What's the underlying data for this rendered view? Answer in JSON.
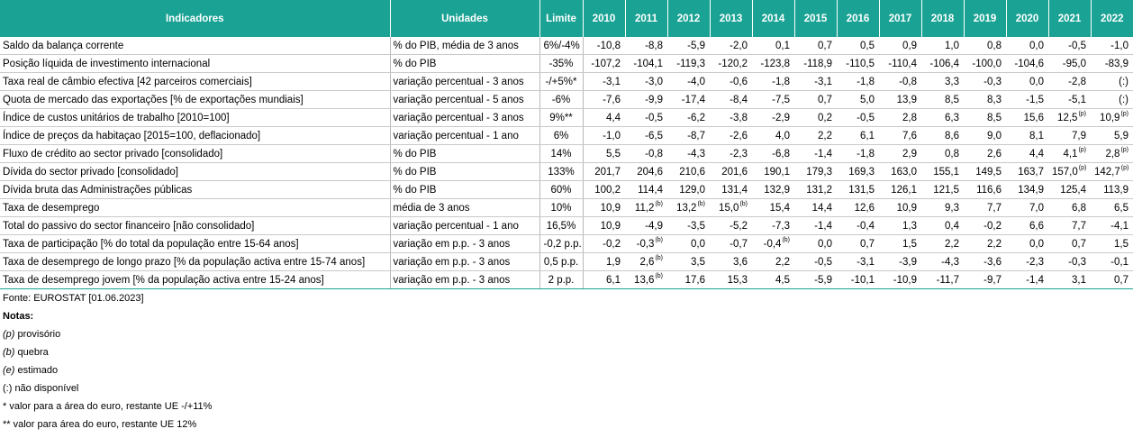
{
  "table": {
    "headers": [
      "Indicadores",
      "Unidades",
      "Limite",
      "2010",
      "2011",
      "2012",
      "2013",
      "2014",
      "2015",
      "2016",
      "2017",
      "2018",
      "2019",
      "2020",
      "2021",
      "2022"
    ],
    "rows": [
      {
        "ind": "Saldo da balança corrente",
        "un": "% do PIB, média de 3 anos",
        "lim": "6%/-4%",
        "v": [
          [
            "-10,8",
            ""
          ],
          [
            "-8,8",
            ""
          ],
          [
            "-5,9",
            ""
          ],
          [
            "-2,0",
            ""
          ],
          [
            "0,1",
            ""
          ],
          [
            "0,7",
            ""
          ],
          [
            "0,5",
            ""
          ],
          [
            "0,9",
            ""
          ],
          [
            "1,0",
            ""
          ],
          [
            "0,8",
            ""
          ],
          [
            "0,0",
            ""
          ],
          [
            "-0,5",
            ""
          ],
          [
            "-1,0",
            ""
          ]
        ]
      },
      {
        "ind": "Posição líquida de investimento internacional",
        "un": "% do PIB",
        "lim": "-35%",
        "v": [
          [
            "-107,2",
            ""
          ],
          [
            "-104,1",
            ""
          ],
          [
            "-119,3",
            ""
          ],
          [
            "-120,2",
            ""
          ],
          [
            "-123,8",
            ""
          ],
          [
            "-118,9",
            ""
          ],
          [
            "-110,5",
            ""
          ],
          [
            "-110,4",
            ""
          ],
          [
            "-106,4",
            ""
          ],
          [
            "-100,0",
            ""
          ],
          [
            "-104,6",
            ""
          ],
          [
            "-95,0",
            ""
          ],
          [
            "-83,9",
            ""
          ]
        ]
      },
      {
        "ind": "Taxa real de câmbio efectiva [42 parceiros comerciais]",
        "un": "variação percentual - 3 anos",
        "lim": "-/+5%*",
        "v": [
          [
            "-3,1",
            ""
          ],
          [
            "-3,0",
            ""
          ],
          [
            "-4,0",
            ""
          ],
          [
            "-0,6",
            ""
          ],
          [
            "-1,8",
            ""
          ],
          [
            "-3,1",
            ""
          ],
          [
            "-1,8",
            ""
          ],
          [
            "-0,8",
            ""
          ],
          [
            "3,3",
            ""
          ],
          [
            "-0,3",
            ""
          ],
          [
            "0,0",
            ""
          ],
          [
            "-2,8",
            ""
          ],
          [
            "(:)",
            ""
          ]
        ]
      },
      {
        "ind": "Quota de mercado das exportações [% de exportações mundiais]",
        "un": "variação percentual - 5 anos",
        "lim": "-6%",
        "v": [
          [
            "-7,6",
            ""
          ],
          [
            "-9,9",
            ""
          ],
          [
            "-17,4",
            ""
          ],
          [
            "-8,4",
            ""
          ],
          [
            "-7,5",
            ""
          ],
          [
            "0,7",
            ""
          ],
          [
            "5,0",
            ""
          ],
          [
            "13,9",
            ""
          ],
          [
            "8,5",
            ""
          ],
          [
            "8,3",
            ""
          ],
          [
            "-1,5",
            ""
          ],
          [
            "-5,1",
            ""
          ],
          [
            "(:)",
            ""
          ]
        ]
      },
      {
        "ind": "Índice de custos unitários de trabalho [2010=100]",
        "un": "variação percentual - 3 anos",
        "lim": "9%**",
        "v": [
          [
            "4,4",
            ""
          ],
          [
            "-0,5",
            ""
          ],
          [
            "-6,2",
            ""
          ],
          [
            "-3,8",
            ""
          ],
          [
            "-2,9",
            ""
          ],
          [
            "0,2",
            ""
          ],
          [
            "-0,5",
            ""
          ],
          [
            "2,8",
            ""
          ],
          [
            "6,3",
            ""
          ],
          [
            "8,5",
            ""
          ],
          [
            "15,6",
            ""
          ],
          [
            "12,5",
            "(p)"
          ],
          [
            "10,9",
            "(p)"
          ]
        ]
      },
      {
        "ind": "Índice de preços da habitaçao [2015=100,  deflacionado]",
        "un": "variação percentual - 1 ano",
        "lim": "6%",
        "v": [
          [
            "-1,0",
            ""
          ],
          [
            "-6,5",
            ""
          ],
          [
            "-8,7",
            ""
          ],
          [
            "-2,6",
            ""
          ],
          [
            "4,0",
            ""
          ],
          [
            "2,2",
            ""
          ],
          [
            "6,1",
            ""
          ],
          [
            "7,6",
            ""
          ],
          [
            "8,6",
            ""
          ],
          [
            "9,0",
            ""
          ],
          [
            "8,1",
            ""
          ],
          [
            "7,9",
            ""
          ],
          [
            "5,9",
            ""
          ]
        ]
      },
      {
        "ind": "Fluxo de crédito ao sector privado [consolidado]",
        "un": "% do PIB",
        "lim": "14%",
        "v": [
          [
            "5,5",
            ""
          ],
          [
            "-0,8",
            ""
          ],
          [
            "-4,3",
            ""
          ],
          [
            "-2,3",
            ""
          ],
          [
            "-6,8",
            ""
          ],
          [
            "-1,4",
            ""
          ],
          [
            "-1,8",
            ""
          ],
          [
            "2,9",
            ""
          ],
          [
            "0,8",
            ""
          ],
          [
            "2,6",
            ""
          ],
          [
            "4,4",
            ""
          ],
          [
            "4,1",
            "(p)"
          ],
          [
            "2,8",
            "(p)"
          ]
        ]
      },
      {
        "ind": "Dívida do sector privado [consolidado]",
        "un": "% do PIB",
        "lim": "133%",
        "v": [
          [
            "201,7",
            ""
          ],
          [
            "204,6",
            ""
          ],
          [
            "210,6",
            ""
          ],
          [
            "201,6",
            ""
          ],
          [
            "190,1",
            ""
          ],
          [
            "179,3",
            ""
          ],
          [
            "169,3",
            ""
          ],
          [
            "163,0",
            ""
          ],
          [
            "155,1",
            ""
          ],
          [
            "149,5",
            ""
          ],
          [
            "163,7",
            ""
          ],
          [
            "157,0",
            "(p)"
          ],
          [
            "142,7",
            "(p)"
          ]
        ]
      },
      {
        "ind": "Dívida bruta das Administrações públicas",
        "un": "% do PIB",
        "lim": "60%",
        "v": [
          [
            "100,2",
            ""
          ],
          [
            "114,4",
            ""
          ],
          [
            "129,0",
            ""
          ],
          [
            "131,4",
            ""
          ],
          [
            "132,9",
            ""
          ],
          [
            "131,2",
            ""
          ],
          [
            "131,5",
            ""
          ],
          [
            "126,1",
            ""
          ],
          [
            "121,5",
            ""
          ],
          [
            "116,6",
            ""
          ],
          [
            "134,9",
            ""
          ],
          [
            "125,4",
            ""
          ],
          [
            "113,9",
            ""
          ]
        ]
      },
      {
        "ind": "Taxa de desemprego",
        "un": "média de 3 anos",
        "lim": "10%",
        "v": [
          [
            "10,9",
            ""
          ],
          [
            "11,2",
            "(b)"
          ],
          [
            "13,2",
            "(b)"
          ],
          [
            "15,0",
            "(b)"
          ],
          [
            "15,4",
            ""
          ],
          [
            "14,4",
            ""
          ],
          [
            "12,6",
            ""
          ],
          [
            "10,9",
            ""
          ],
          [
            "9,3",
            ""
          ],
          [
            "7,7",
            ""
          ],
          [
            "7,0",
            ""
          ],
          [
            "6,8",
            ""
          ],
          [
            "6,5",
            ""
          ]
        ]
      },
      {
        "ind": "Total do passivo do sector financeiro [não consolidado]",
        "un": "variação percentual - 1 ano",
        "lim": "16,5%",
        "v": [
          [
            "10,9",
            ""
          ],
          [
            "-4,9",
            ""
          ],
          [
            "-3,5",
            ""
          ],
          [
            "-5,2",
            ""
          ],
          [
            "-7,3",
            ""
          ],
          [
            "-1,4",
            ""
          ],
          [
            "-0,4",
            ""
          ],
          [
            "1,3",
            ""
          ],
          [
            "0,4",
            ""
          ],
          [
            "-0,2",
            ""
          ],
          [
            "6,6",
            ""
          ],
          [
            "7,7",
            ""
          ],
          [
            "-4,1",
            ""
          ]
        ]
      },
      {
        "ind": "Taxa de participação [% do total da população entre 15-64 anos]",
        "un": "variação em p.p. - 3 anos",
        "lim": "-0,2 p.p.",
        "v": [
          [
            "-0,2",
            ""
          ],
          [
            "-0,3",
            "(b)"
          ],
          [
            "0,0",
            ""
          ],
          [
            "-0,7",
            ""
          ],
          [
            "-0,4",
            "(b)"
          ],
          [
            "0,0",
            ""
          ],
          [
            "0,7",
            ""
          ],
          [
            "1,5",
            ""
          ],
          [
            "2,2",
            ""
          ],
          [
            "2,2",
            ""
          ],
          [
            "0,0",
            ""
          ],
          [
            "0,7",
            ""
          ],
          [
            "1,5",
            ""
          ]
        ]
      },
      {
        "ind": "Taxa de desemprego de longo prazo [% da população activa entre 15-74 anos]",
        "un": "variação em p.p. - 3 anos",
        "lim": "0,5 p.p.",
        "v": [
          [
            "1,9",
            ""
          ],
          [
            "2,6",
            "(b)"
          ],
          [
            "3,5",
            ""
          ],
          [
            "3,6",
            ""
          ],
          [
            "2,2",
            ""
          ],
          [
            "-0,5",
            ""
          ],
          [
            "-3,1",
            ""
          ],
          [
            "-3,9",
            ""
          ],
          [
            "-4,3",
            ""
          ],
          [
            "-3,6",
            ""
          ],
          [
            "-2,3",
            ""
          ],
          [
            "-0,3",
            ""
          ],
          [
            "-0,1",
            ""
          ]
        ]
      },
      {
        "ind": "Taxa de desemprego jovem [% da população activa entre 15-24 anos]",
        "un": "variação em p.p. - 3 anos",
        "lim": "2 p.p.",
        "v": [
          [
            "6,1",
            ""
          ],
          [
            "13,6",
            "(b)"
          ],
          [
            "17,6",
            ""
          ],
          [
            "15,3",
            ""
          ],
          [
            "4,5",
            ""
          ],
          [
            "-5,9",
            ""
          ],
          [
            "-10,1",
            ""
          ],
          [
            "-10,9",
            ""
          ],
          [
            "-11,7",
            ""
          ],
          [
            "-9,7",
            ""
          ],
          [
            "-1,4",
            ""
          ],
          [
            "3,1",
            ""
          ],
          [
            "0,7",
            ""
          ]
        ]
      }
    ]
  },
  "notes": {
    "source": "Fonte: EUROSTAT [01.06.2023]",
    "title": "Notas:",
    "p_code": "(p)",
    "p_text": "provisório",
    "b_code": "(b)",
    "b_text": "quebra",
    "e_code": "(e)",
    "e_text": "estimado",
    "na": "(:) não disponível",
    "star1": "* valor para a área do euro, restante UE -/+11%",
    "star2": "** valor para área do euro, restante UE 12%"
  },
  "colors": {
    "header_bg": "#1aa394",
    "header_text": "#ffffff"
  }
}
